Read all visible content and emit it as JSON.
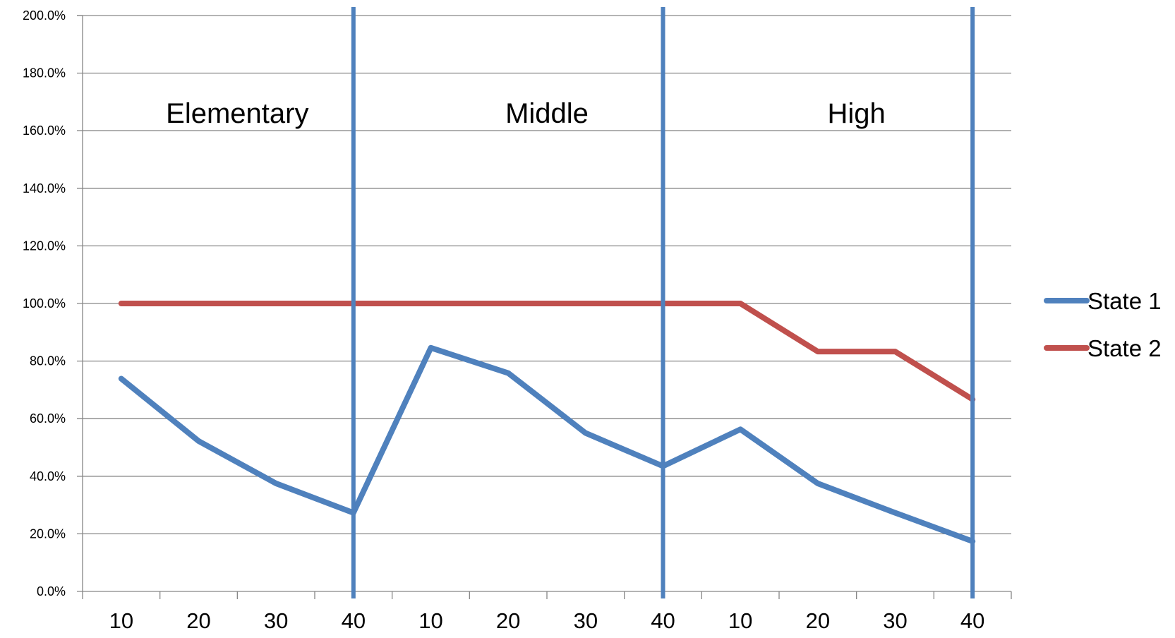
{
  "chart_data": {
    "type": "line",
    "title": "",
    "xlabel": "",
    "ylabel": "",
    "categories": [
      "10",
      "20",
      "30",
      "40",
      "10",
      "20",
      "30",
      "40",
      "10",
      "20",
      "30",
      "40"
    ],
    "ylim": [
      0,
      200
    ],
    "yticks": [
      "0.0%",
      "20.0%",
      "40.0%",
      "60.0%",
      "80.0%",
      "100.0%",
      "120.0%",
      "140.0%",
      "160.0%",
      "180.0%",
      "200.0%"
    ],
    "grid": true,
    "legend_position": "right",
    "series": [
      {
        "name": "State 1",
        "color": "#4F81BD",
        "values": [
          73.9,
          52.2,
          37.5,
          27.3,
          84.6,
          75.8,
          55.0,
          43.5,
          56.3,
          37.5,
          27.3,
          17.4
        ]
      },
      {
        "name": "State 2",
        "color": "#C0504D",
        "values": [
          100,
          100,
          100,
          100,
          100,
          100,
          100,
          100,
          100,
          83.3,
          83.3,
          66.7
        ]
      }
    ],
    "sections": [
      {
        "label": "Elementary"
      },
      {
        "label": "Middle"
      },
      {
        "label": "High"
      }
    ],
    "divider_color": "#4F81BD"
  }
}
